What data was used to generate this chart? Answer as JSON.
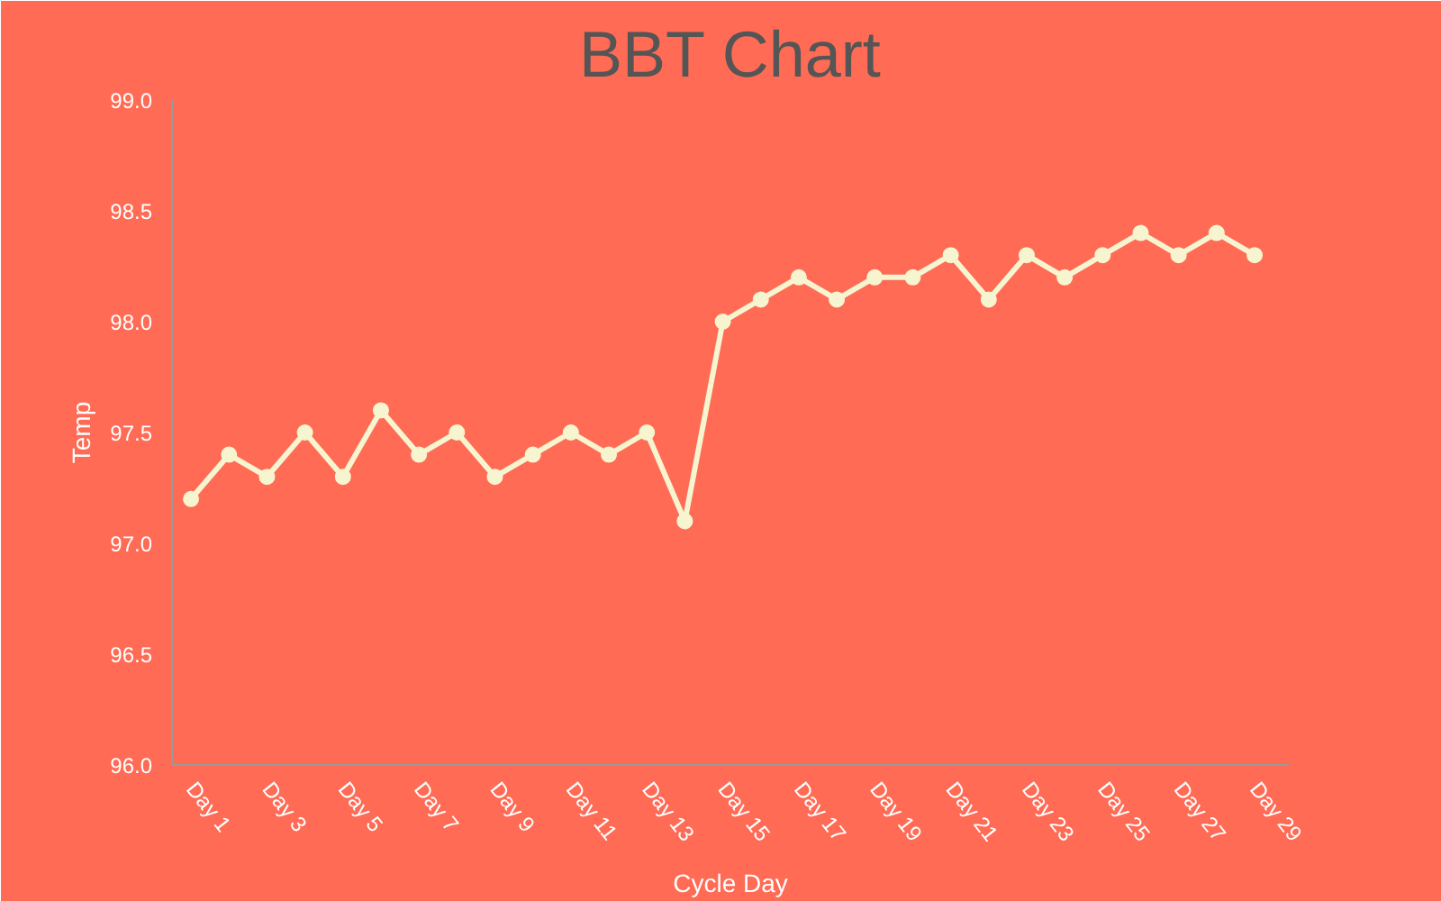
{
  "chart_data": {
    "type": "line",
    "title": "BBT Chart",
    "xlabel": "Cycle Day",
    "ylabel": "Temp",
    "categories": [
      "Day 1",
      null,
      "Day 3",
      null,
      "Day 5",
      null,
      "Day 7",
      null,
      "Day 9",
      null,
      "Day 11",
      null,
      "Day 13",
      null,
      "Day 15",
      null,
      "Day 17",
      null,
      "Day 19",
      null,
      "Day 21",
      null,
      "Day 23",
      null,
      "Day 25",
      null,
      "Day 27",
      null,
      "Day 29"
    ],
    "series": [
      {
        "color": "#f6f5d0",
        "values": [
          97.2,
          97.4,
          97.3,
          97.5,
          97.3,
          97.6,
          97.4,
          97.5,
          97.3,
          97.4,
          97.5,
          97.4,
          97.5,
          97.1,
          98.0,
          98.1,
          98.2,
          98.1,
          98.2,
          98.2,
          98.3,
          98.1,
          98.3,
          98.2,
          98.3,
          98.4,
          98.3,
          98.4,
          98.3
        ]
      }
    ],
    "ylim": [
      96,
      99
    ],
    "yticks": [
      {
        "value": 96,
        "label": "96.0"
      },
      {
        "value": 96.5,
        "label": "96.5"
      },
      {
        "value": 97,
        "label": "97.0"
      },
      {
        "value": 97.5,
        "label": "97.5"
      },
      {
        "value": 98,
        "label": "98.0"
      },
      {
        "value": 98.5,
        "label": "98.5"
      },
      {
        "value": 99,
        "label": "99.0"
      }
    ],
    "grid": false,
    "marker": "circle",
    "line_style": "solid"
  }
}
